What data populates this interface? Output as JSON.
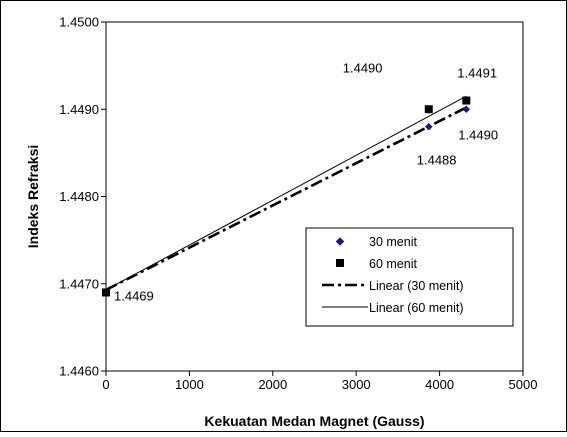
{
  "chart_data": {
    "type": "scatter",
    "title": "",
    "xlabel": "Kekuatan Medan Magnet (Gauss)",
    "ylabel": "Indeks Refraksi",
    "xlim": [
      0,
      5000
    ],
    "ylim": [
      1.446,
      1.45
    ],
    "x_ticks": [
      0,
      1000,
      2000,
      3000,
      4000,
      5000
    ],
    "x_tick_labels": [
      "0",
      "1000",
      "2000",
      "3000",
      "4000",
      "5000"
    ],
    "y_ticks": [
      1.446,
      1.447,
      1.448,
      1.449,
      1.45
    ],
    "y_tick_labels": [
      "1.4460",
      "1.4470",
      "1.4480",
      "1.4490",
      "1.4500"
    ],
    "grid": false,
    "legend_position": "lower-right",
    "series": [
      {
        "name": "30 menit",
        "kind": "points",
        "marker": "diamond",
        "color": "#1a1a8c",
        "x": [
          0,
          3870,
          4320
        ],
        "y": [
          1.4469,
          1.4488,
          1.449
        ],
        "labels": [
          "1.4469",
          "1.4488",
          "1.4490"
        ]
      },
      {
        "name": "60 menit",
        "kind": "points",
        "marker": "square",
        "color": "#000000",
        "x": [
          0,
          3870,
          4320
        ],
        "y": [
          1.4469,
          1.449,
          1.4491
        ],
        "labels": [
          "",
          "1.4490",
          "1.4491"
        ]
      },
      {
        "name": "Linear (30 menit)",
        "kind": "trendline",
        "style": "dash-dot",
        "color": "#000000",
        "x": [
          0,
          4320
        ],
        "y": [
          1.44693,
          1.44902
        ]
      },
      {
        "name": "Linear (60 menit)",
        "kind": "trendline",
        "style": "solid",
        "color": "#000000",
        "x": [
          0,
          4320
        ],
        "y": [
          1.44693,
          1.44915
        ]
      }
    ]
  }
}
